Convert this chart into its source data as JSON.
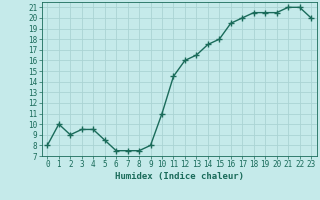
{
  "x": [
    0,
    1,
    2,
    3,
    4,
    5,
    6,
    7,
    8,
    9,
    10,
    11,
    12,
    13,
    14,
    15,
    16,
    17,
    18,
    19,
    20,
    21,
    22,
    23
  ],
  "y": [
    8,
    10,
    9,
    9.5,
    9.5,
    8.5,
    7.5,
    7.5,
    7.5,
    8,
    11,
    14.5,
    16,
    16.5,
    17.5,
    18,
    19.5,
    20,
    20.5,
    20.5,
    20.5,
    21,
    21,
    20
  ],
  "line_color": "#1a6b5a",
  "marker": "+",
  "marker_size": 4,
  "bg_color": "#c5eaea",
  "grid_color": "#aad4d4",
  "xlabel": "Humidex (Indice chaleur)",
  "xlim": [
    -0.5,
    23.5
  ],
  "ylim": [
    7,
    21.5
  ],
  "yticks": [
    7,
    8,
    9,
    10,
    11,
    12,
    13,
    14,
    15,
    16,
    17,
    18,
    19,
    20,
    21
  ],
  "xticks": [
    0,
    1,
    2,
    3,
    4,
    5,
    6,
    7,
    8,
    9,
    10,
    11,
    12,
    13,
    14,
    15,
    16,
    17,
    18,
    19,
    20,
    21,
    22,
    23
  ],
  "tick_color": "#1a6b5a",
  "label_color": "#1a6b5a",
  "xlabel_fontsize": 6.5,
  "tick_fontsize": 5.5,
  "linewidth": 1.0
}
